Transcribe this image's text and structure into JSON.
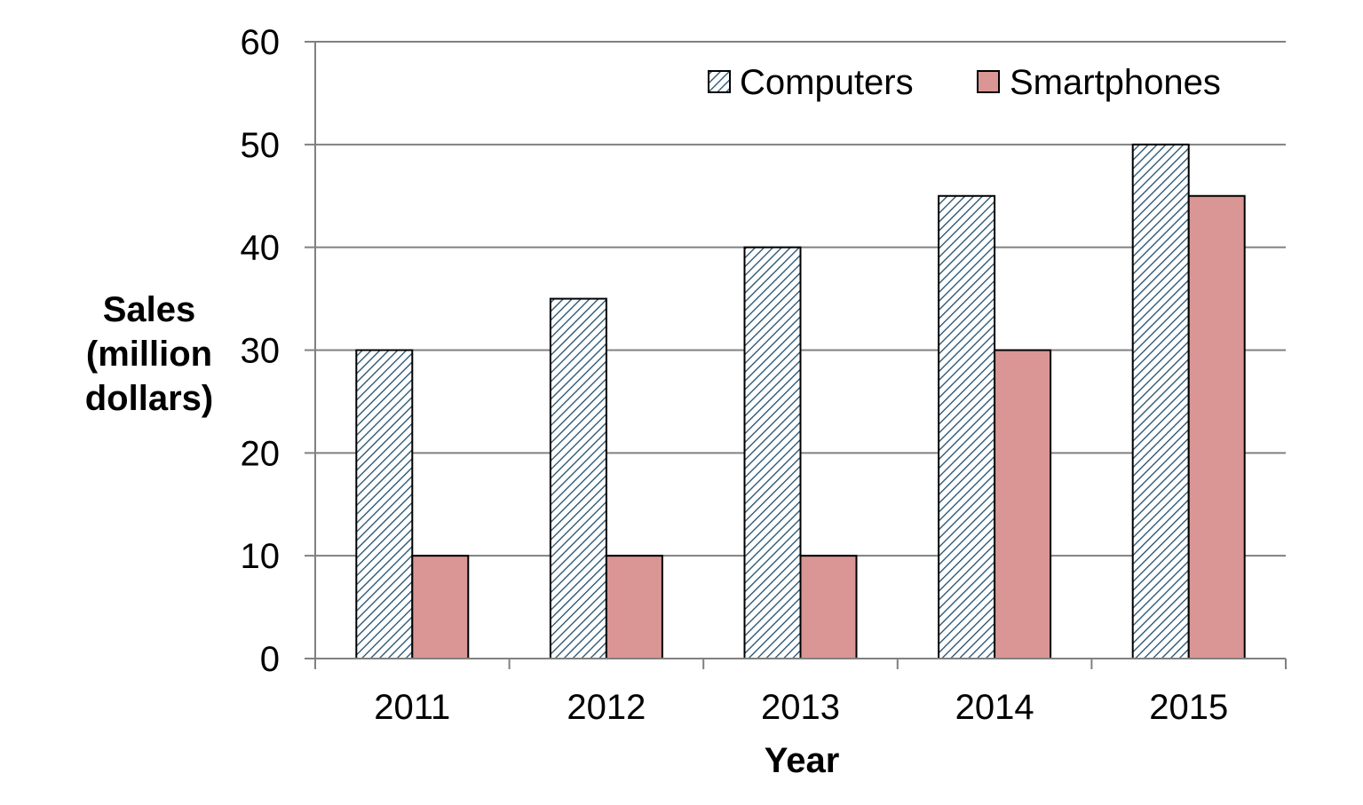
{
  "chart_data": {
    "type": "bar",
    "title": "",
    "xlabel": "Year",
    "ylabel": [
      "Sales",
      "(million",
      "dollars)"
    ],
    "categories": [
      "2011",
      "2012",
      "2013",
      "2014",
      "2015"
    ],
    "series": [
      {
        "name": "Computers",
        "values": [
          30,
          35,
          40,
          45,
          50
        ],
        "fill": "hatch",
        "color": "#1f4e6b"
      },
      {
        "name": "Smartphones",
        "values": [
          10,
          10,
          10,
          30,
          45
        ],
        "fill": "solid",
        "color": "#d99694"
      }
    ],
    "ylim": [
      0,
      60
    ],
    "yticks": [
      "0",
      "10",
      "20",
      "30",
      "40",
      "50",
      "60"
    ],
    "grid": true,
    "legend": "top-right",
    "colors": {
      "gridline": "#808080",
      "axis": "#808080",
      "bar_outline": "#000000",
      "hatch_background": "#ffffff"
    }
  }
}
